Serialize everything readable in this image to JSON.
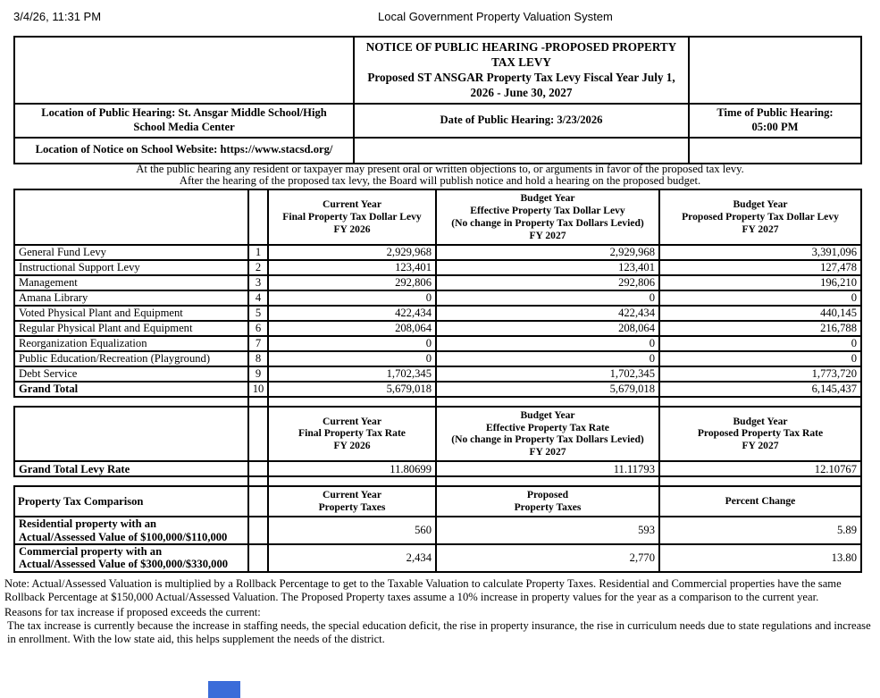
{
  "print_header": {
    "datetime": "3/4/26, 11:31 PM",
    "title": "Local Government Property Valuation System"
  },
  "notice": {
    "title": "NOTICE OF PUBLIC HEARING -PROPOSED PROPERTY\nTAX LEVY\nProposed ST ANSGAR Property Tax Levy Fiscal Year July 1,\n2026 - June 30, 2027",
    "location": "Location of Public Hearing: St. Ansgar Middle School/High\nSchool Media Center",
    "date": "Date of Public Hearing: 3/23/2026",
    "time": "Time of Public Hearing:\n05:00 PM",
    "website": "Location of Notice on School Website: https://www.stacsd.org/"
  },
  "hearing_note": "At the public hearing any resident or taxpayer may present oral or written objections to, or arguments in favor of the proposed tax levy.\nAfter the hearing of the proposed tax levy, the Board will publish notice and hold a hearing on the proposed budget.",
  "levy_table": {
    "header_current": "Current Year\nFinal Property Tax Dollar Levy\nFY 2026",
    "header_effective": "Budget Year\nEffective Property Tax Dollar Levy\n(No change in Property Tax Dollars Levied)\nFY 2027",
    "header_proposed": "Budget Year\nProposed Property Tax Dollar Levy\nFY 2027",
    "rows": [
      {
        "label": "General Fund Levy",
        "line": "1",
        "values": [
          "2,929,968",
          "2,929,968",
          "3,391,096"
        ],
        "bold": false
      },
      {
        "label": "Instructional Support Levy",
        "line": "2",
        "values": [
          "123,401",
          "123,401",
          "127,478"
        ],
        "bold": false
      },
      {
        "label": "Management",
        "line": "3",
        "values": [
          "292,806",
          "292,806",
          "196,210"
        ],
        "bold": false
      },
      {
        "label": "Amana Library",
        "line": "4",
        "values": [
          "0",
          "0",
          "0"
        ],
        "bold": false
      },
      {
        "label": "Voted Physical Plant and Equipment",
        "line": "5",
        "values": [
          "422,434",
          "422,434",
          "440,145"
        ],
        "bold": false
      },
      {
        "label": "Regular Physical Plant and Equipment",
        "line": "6",
        "values": [
          "208,064",
          "208,064",
          "216,788"
        ],
        "bold": false
      },
      {
        "label": "Reorganization Equalization",
        "line": "7",
        "values": [
          "0",
          "0",
          "0"
        ],
        "bold": false
      },
      {
        "label": "Public Education/Recreation (Playground)",
        "line": "8",
        "values": [
          "0",
          "0",
          "0"
        ],
        "bold": false
      },
      {
        "label": "Debt Service",
        "line": "9",
        "values": [
          "1,702,345",
          "1,702,345",
          "1,773,720"
        ],
        "bold": false
      },
      {
        "label": "Grand Total",
        "line": "10",
        "values": [
          "5,679,018",
          "5,679,018",
          "6,145,437"
        ],
        "bold": true
      }
    ]
  },
  "rate_table": {
    "header_current": "Current Year\nFinal Property Tax Rate\nFY 2026",
    "header_effective": "Budget Year\nEffective Property Tax Rate\n(No change in Property Tax Dollars Levied)\nFY 2027",
    "header_proposed": "Budget Year\nProposed Property Tax Rate\nFY 2027",
    "rows": [
      {
        "label": "Grand Total Levy Rate",
        "line": "",
        "values": [
          "11.80699",
          "11.11793",
          "12.10767"
        ],
        "bold": true
      }
    ]
  },
  "comparison_table": {
    "title": "Property Tax Comparison",
    "header_current": "Current Year\nProperty Taxes",
    "header_proposed": "Proposed\nProperty Taxes",
    "header_change": "Percent Change",
    "rows": [
      {
        "label": "Residential property with an\nActual/Assessed Value of $100,000/$110,000",
        "line": "",
        "values": [
          "560",
          "593",
          "5.89"
        ],
        "bold": true
      },
      {
        "label": "Commercial property with an\nActual/Assessed Value of $300,000/$330,000",
        "line": "",
        "values": [
          "2,434",
          "2,770",
          "13.80"
        ],
        "bold": true
      }
    ]
  },
  "notes": {
    "note": "Note: Actual/Assessed Valuation is multiplied by a Rollback Percentage to get to the Taxable Valuation to calculate Property Taxes. Residential and Commercial properties have the same Rollback Percentage at $150,000 Actual/Assessed Valuation. The Proposed Property taxes assume a 10% increase in property values for the year as a comparison to the current year.",
    "reasons_heading": "Reasons for tax increase if proposed exceeds the current:",
    "reasons": "The tax increase is currently because the increase in staffing needs, the special education deficit, the rise in property insurance, the rise in curriculum needs due to state regulations and increase in enrollment. With the low state aid, this helps supplement the needs of the district."
  },
  "colors": {
    "text": "#000000",
    "background": "#ffffff",
    "border": "#000000",
    "blue_box": "#3b6cd9"
  }
}
